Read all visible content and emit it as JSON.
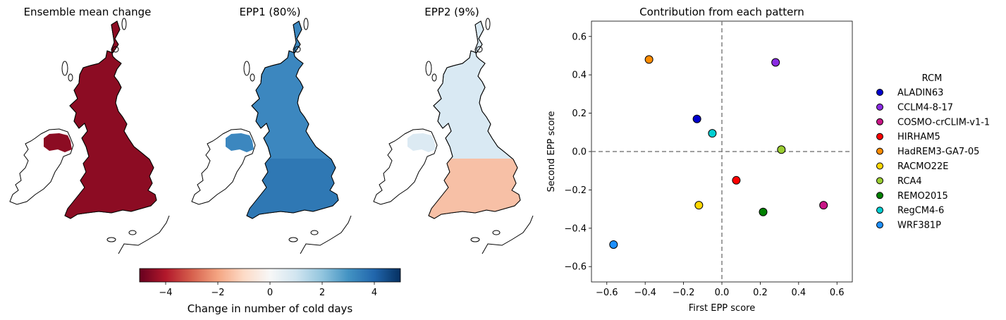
{
  "maps": {
    "panels": [
      {
        "title": "Ensemble mean change",
        "fill": "#8c0c23",
        "south_fill": "#8c0c23"
      },
      {
        "title": "EPP1 (80%)",
        "fill": "#3c87bf",
        "south_fill": "#2f78b4"
      },
      {
        "title": "EPP2 (9%)",
        "fill": "#d9e9f3",
        "south_fill": "#f7c0a6"
      }
    ],
    "colorbar": {
      "label": "Change in number of cold days",
      "range": [
        -5,
        5
      ],
      "ticks": [
        -4,
        -2,
        0,
        2,
        4
      ],
      "tick_labels": [
        "−4",
        "−2",
        "0",
        "2",
        "4"
      ],
      "colormap": "RdBu",
      "stops": [
        "#67001f",
        "#b2182b",
        "#d6604d",
        "#f4a582",
        "#fddbc7",
        "#f7f7f7",
        "#d1e5f0",
        "#92c5de",
        "#4393c3",
        "#2166ac",
        "#053061"
      ]
    }
  },
  "chart_data": {
    "type": "scatter",
    "title": "Contribution from each pattern",
    "xlabel": "First EPP score",
    "ylabel": "Second EPP score",
    "xlim": [
      -0.68,
      0.68
    ],
    "ylim": [
      -0.68,
      0.68
    ],
    "xticks": [
      -0.6,
      -0.4,
      -0.2,
      0.0,
      0.2,
      0.4,
      0.6
    ],
    "xtick_labels": [
      "−0.6",
      "−0.4",
      "−0.2",
      "0.0",
      "0.2",
      "0.4",
      "0.6"
    ],
    "yticks": [
      -0.6,
      -0.4,
      -0.2,
      0.0,
      0.2,
      0.4,
      0.6
    ],
    "ytick_labels": [
      "−0.6",
      "−0.4",
      "−0.2",
      "0.0",
      "0.2",
      "0.4",
      "0.6"
    ],
    "grid": false,
    "reference_lines": {
      "x": 0,
      "y": 0,
      "style": "dashed",
      "color": "#808080"
    },
    "legend": {
      "title": "RCM",
      "placement": "outside-right"
    },
    "series": [
      {
        "name": "ALADIN63",
        "x": -0.13,
        "y": 0.17,
        "color": "#0000cd"
      },
      {
        "name": "CCLM4-8-17",
        "x": 0.28,
        "y": 0.465,
        "color": "#8a2be2"
      },
      {
        "name": "COSMO-crCLIM-v1-1",
        "x": 0.53,
        "y": -0.28,
        "color": "#c71585"
      },
      {
        "name": "HIRHAM5",
        "x": 0.075,
        "y": -0.15,
        "color": "#ff0000"
      },
      {
        "name": "HadREM3-GA7-05",
        "x": -0.38,
        "y": 0.48,
        "color": "#ff8c00"
      },
      {
        "name": "RACMO22E",
        "x": -0.12,
        "y": -0.28,
        "color": "#ffd700"
      },
      {
        "name": "RCA4",
        "x": 0.31,
        "y": 0.01,
        "color": "#9acd32"
      },
      {
        "name": "REMO2015",
        "x": 0.215,
        "y": -0.315,
        "color": "#008000"
      },
      {
        "name": "RegCM4-6",
        "x": -0.05,
        "y": 0.095,
        "color": "#00ced1"
      },
      {
        "name": "WRF381P",
        "x": -0.565,
        "y": -0.485,
        "color": "#1e90ff"
      }
    ]
  }
}
